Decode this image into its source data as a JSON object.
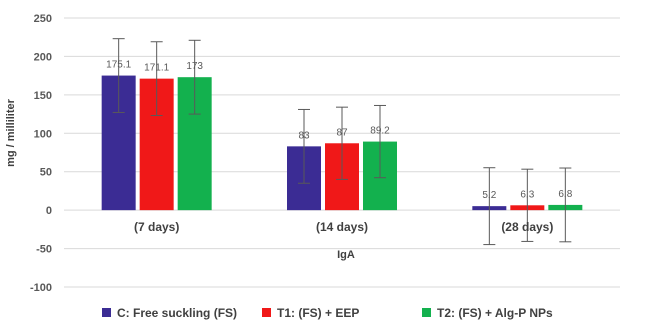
{
  "chart_data": {
    "type": "bar",
    "categories": [
      "(7 days)",
      "(14 days)",
      "(28 days)"
    ],
    "series": [
      {
        "name": "C: Free suckling (FS)",
        "color": "#3b2c94",
        "values": [
          175.1,
          83,
          5.2
        ],
        "error": [
          48,
          48,
          50
        ],
        "labels": [
          "175.1",
          "83",
          "5.2"
        ]
      },
      {
        "name": "T1: (FS) + EEP",
        "color": "#f01818",
        "values": [
          171.1,
          87,
          6.3
        ],
        "error": [
          48,
          47,
          47
        ],
        "labels": [
          "171.1",
          "87",
          "6.3"
        ]
      },
      {
        "name": "T2: (FS) + Alg-P NPs",
        "color": "#13b14e",
        "values": [
          173,
          89.2,
          6.8
        ],
        "error": [
          48,
          47,
          48
        ],
        "labels": [
          "173",
          "89.2",
          "6.8"
        ]
      }
    ],
    "xlabel": "IgA",
    "ylabel": "mg / milliliter",
    "ylim": [
      -100,
      250
    ],
    "yticks": [
      -100,
      -50,
      0,
      50,
      100,
      150,
      200,
      250
    ],
    "grid": true,
    "legend_position": "bottom"
  }
}
